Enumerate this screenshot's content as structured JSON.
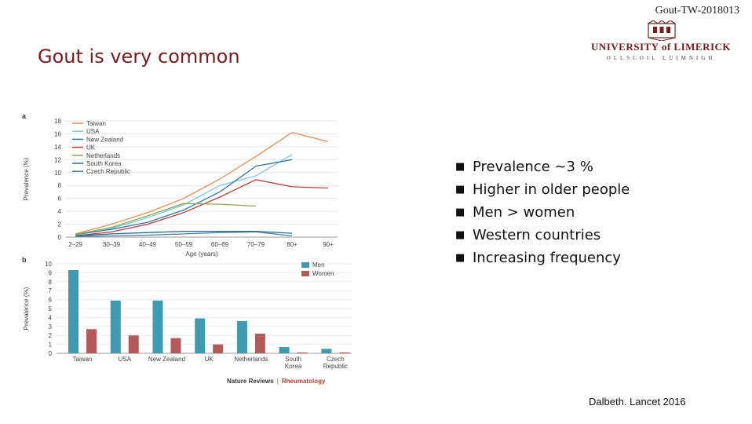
{
  "header_code": "Gout-TW-2018013",
  "slide_title": "Gout is very common",
  "logo": {
    "name": "UNIVERSITY of LIMERICK",
    "subtitle": "OLLSCOIL LUIMNIGH"
  },
  "bullets": [
    "Prevalence ~3 %",
    "Higher in older people",
    "Men > women",
    "Western countries",
    "Increasing frequency"
  ],
  "citation": "Dalbeth. Lancet 2016",
  "figure_footer": {
    "journal": "Nature Reviews",
    "separator": "|",
    "section": "Rheumatology"
  },
  "chart_data": [
    {
      "panel": "a",
      "type": "line",
      "xlabel": "Age (years)",
      "ylabel": "Prevalence (%)",
      "ylim": [
        0,
        18
      ],
      "yticks": [
        "0",
        "2",
        "4",
        "6",
        "8",
        "10",
        "12",
        "14",
        "16",
        "18"
      ],
      "categories": [
        "2–29",
        "30–39",
        "40–49",
        "50–59",
        "60–69",
        "70–79",
        "80+",
        "90+"
      ],
      "legend_position": "top-left",
      "series": [
        {
          "name": "Taiwan",
          "color": "#ee8a4e",
          "values": [
            0.5,
            2.0,
            3.8,
            6.0,
            9.0,
            12.5,
            16.2,
            14.8
          ]
        },
        {
          "name": "USA",
          "color": "#7dc5dc",
          "values": [
            0.3,
            1.3,
            3.0,
            5.0,
            8.0,
            9.5,
            12.8,
            null
          ]
        },
        {
          "name": "New Zealand",
          "color": "#2a7aa8",
          "values": [
            0.4,
            1.2,
            2.3,
            4.2,
            7.0,
            11.0,
            12.0,
            null
          ]
        },
        {
          "name": "UK",
          "color": "#c23a3a",
          "values": [
            0.2,
            0.8,
            2.0,
            3.8,
            6.2,
            8.9,
            7.8,
            7.6
          ]
        },
        {
          "name": "Netherlands",
          "color": "#86a84e",
          "values": [
            0.4,
            1.5,
            3.3,
            5.2,
            5.1,
            4.8,
            null,
            null
          ]
        },
        {
          "name": "South Korea",
          "color": "#23699a",
          "values": [
            0.2,
            0.5,
            0.7,
            0.9,
            0.9,
            0.9,
            0.6,
            null
          ]
        },
        {
          "name": "Czech Republic",
          "color": "#4d7f99",
          "values": [
            0.1,
            0.2,
            0.3,
            0.5,
            0.7,
            0.8,
            0.2,
            null
          ]
        }
      ]
    },
    {
      "panel": "b",
      "type": "bar",
      "ylabel": "Prevalence (%)",
      "ylim": [
        0,
        10
      ],
      "yticks": [
        "0",
        "1",
        "2",
        "3",
        "4",
        "5",
        "6",
        "7",
        "8",
        "9",
        "10"
      ],
      "categories": [
        [
          "Taiwan"
        ],
        [
          "USA"
        ],
        [
          "New Zealand"
        ],
        [
          "UK"
        ],
        [
          "Netherlands"
        ],
        [
          "South",
          "Korea"
        ],
        [
          "Czech",
          "Republic"
        ]
      ],
      "legend_position": "top-right",
      "series": [
        {
          "name": "Men",
          "color": "#3f9bb0",
          "values": [
            9.3,
            5.9,
            5.9,
            3.9,
            3.6,
            0.7,
            0.5
          ]
        },
        {
          "name": "Women",
          "color": "#b55a5a",
          "values": [
            2.7,
            2.0,
            1.7,
            1.0,
            2.2,
            0.1,
            0.1
          ]
        }
      ]
    }
  ]
}
